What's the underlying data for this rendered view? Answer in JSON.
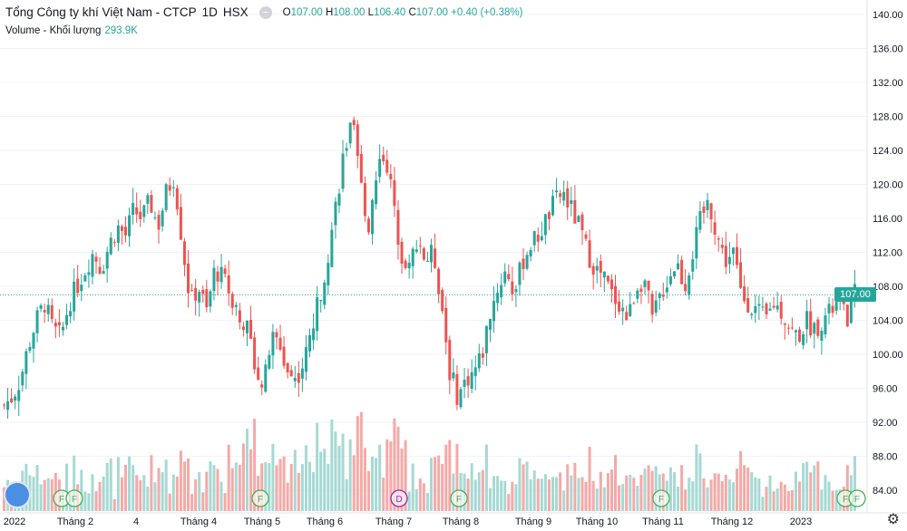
{
  "header": {
    "symbol_title": "Tổng Công ty khí Việt Nam - CTCP",
    "interval": "1D",
    "exchange": "HSX",
    "ohlc": {
      "open_label": "O",
      "open": "107.00",
      "high_label": "H",
      "high": "108.00",
      "low_label": "L",
      "low": "106.40",
      "close_label": "C",
      "close": "107.00",
      "change": "+0.40 (+0.38%)"
    },
    "volume_label": "Volume - Khối lượng",
    "volume_value": "293.9K",
    "last_price_tag": "107.00"
  },
  "colors": {
    "up": "#26a69a",
    "down": "#ef5350",
    "up_vol": "#a6d9d3",
    "down_vol": "#f5a9a7"
  },
  "chart_data": {
    "type": "candlestick",
    "y_axis_ticks": [
      "140.00",
      "136.00",
      "132.00",
      "128.00",
      "124.00",
      "120.00",
      "116.00",
      "112.00",
      "108.00",
      "104.00",
      "100.00",
      "96.00",
      "92.00",
      "88.00",
      "84.00"
    ],
    "ylim": [
      82,
      141
    ],
    "last_price": 107.0,
    "x_axis_labels": [
      "2022",
      "Tháng 2",
      "4",
      "Tháng 4",
      "Tháng 5",
      "Tháng 6",
      "Tháng 7",
      "Tháng 8",
      "Tháng 9",
      "Tháng 10",
      "Tháng 11",
      "Tháng 12",
      "2023"
    ],
    "close_path": [
      94,
      95,
      97,
      101,
      104,
      106,
      103,
      102,
      106,
      108,
      110,
      112,
      110,
      113,
      115,
      114,
      117,
      116,
      118,
      115,
      119,
      121,
      113,
      106,
      108,
      105,
      110,
      109,
      107,
      105,
      103,
      99,
      96,
      102,
      101,
      98,
      97,
      99,
      103,
      107,
      112,
      118,
      124,
      127,
      120,
      115,
      122,
      124,
      118,
      112,
      110,
      114,
      111,
      112,
      106,
      98,
      95,
      97,
      98,
      100,
      105,
      108,
      110,
      107,
      111,
      113,
      114,
      116,
      118,
      119,
      117,
      115,
      112,
      110,
      109,
      107,
      106,
      104,
      108,
      109,
      104,
      107,
      109,
      111,
      108,
      112,
      116,
      118,
      114,
      111,
      112,
      107,
      106,
      105,
      104,
      106,
      105,
      103,
      102,
      104,
      103,
      104,
      105,
      106,
      104,
      107
    ],
    "events": [
      {
        "label": "F",
        "position": "Tháng 2"
      },
      {
        "label": "F",
        "position": "Tháng 2"
      },
      {
        "label": "F",
        "position": "Tháng 5"
      },
      {
        "label": "D",
        "position": "Tháng 7"
      },
      {
        "label": "F",
        "position": "Tháng 8"
      },
      {
        "label": "F",
        "position": "Tháng 11"
      },
      {
        "label": "F",
        "position": "2023"
      },
      {
        "label": "F",
        "position": "2023"
      }
    ]
  },
  "icons": {
    "logo": "tradingview-logo-icon",
    "settings": "gear-icon"
  }
}
